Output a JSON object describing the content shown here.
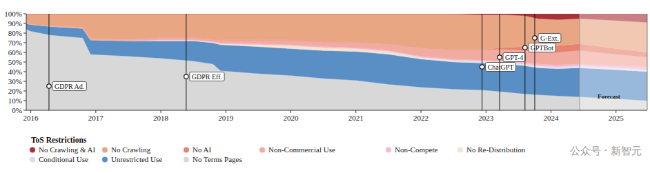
{
  "chart_data": {
    "type": "area",
    "stacked": true,
    "grid": false,
    "legend": "bottom-left",
    "legend_title": "ToS Restrictions",
    "x": [
      2015.93,
      2016.0,
      2016.3,
      2016.8,
      2016.92,
      2017.5,
      2018.0,
      2018.5,
      2018.8,
      2018.92,
      2019.5,
      2020.0,
      2020.5,
      2021.0,
      2021.5,
      2022.0,
      2022.5,
      2022.94,
      2023.3,
      2023.6,
      2023.8,
      2024.1,
      2024.44,
      2025.0,
      2025.48
    ],
    "xlim": [
      2015.93,
      2025.48
    ],
    "xticks": [
      2016,
      2017,
      2018,
      2019,
      2020,
      2021,
      2022,
      2023,
      2024,
      2025
    ],
    "ylim": [
      0,
      100
    ],
    "yticks": [
      {
        "value": 0,
        "label": "0%"
      },
      {
        "value": 10,
        "label": "10%"
      },
      {
        "value": 20,
        "label": "20%"
      },
      {
        "value": 30,
        "label": "30%"
      },
      {
        "value": 40,
        "label": "40%"
      },
      {
        "value": 50,
        "label": "50%"
      },
      {
        "value": 60,
        "label": "60%"
      },
      {
        "value": 70,
        "label": "70%"
      },
      {
        "value": 80,
        "label": "80%"
      },
      {
        "value": 90,
        "label": "90%"
      },
      {
        "value": 100,
        "label": "100%"
      }
    ],
    "series": [
      {
        "name": "No Crawling & AI",
        "color": "#a8323a",
        "values": [
          0,
          0,
          0,
          0,
          0,
          0,
          0,
          0,
          0,
          0,
          0,
          0,
          0,
          0,
          0,
          0,
          0,
          1,
          1,
          2,
          5,
          6,
          5,
          7,
          9
        ]
      },
      {
        "name": "No Crawling",
        "color": "#e8a683",
        "values": [
          9,
          10,
          12,
          13,
          25,
          26,
          24,
          24,
          26,
          27,
          27,
          27,
          29,
          29,
          31,
          35,
          37,
          36,
          34,
          32,
          28,
          27,
          26,
          29,
          31
        ]
      },
      {
        "name": "No AI",
        "color": "#e9826f",
        "values": [
          0,
          0,
          0,
          0,
          0,
          0,
          0,
          0,
          0,
          0,
          0,
          0,
          0,
          0,
          0,
          0,
          0,
          0,
          2,
          4,
          6,
          7,
          7,
          6,
          5
        ]
      },
      {
        "name": "Non-Commercial Use",
        "color": "#f2aba1",
        "values": [
          1,
          1,
          1,
          2,
          2,
          2,
          3,
          3,
          3,
          3,
          4,
          5,
          5,
          6,
          7,
          9,
          10,
          11,
          12,
          12,
          13,
          13,
          14,
          12,
          10
        ]
      },
      {
        "name": "Non-Compete",
        "color": "#f3b8dc",
        "values": [
          0,
          0,
          0,
          0,
          0,
          0,
          0,
          0,
          0,
          1,
          1,
          1,
          1,
          1,
          1,
          1,
          1,
          1,
          1,
          2,
          2,
          2,
          2,
          2,
          3
        ]
      },
      {
        "name": "No Re-Distribution",
        "color": "#f4e3cf",
        "values": [
          0,
          0,
          0,
          0,
          0,
          0,
          1,
          1,
          1,
          1,
          2,
          3,
          3,
          3,
          2,
          1,
          1,
          1,
          1,
          1,
          1,
          1,
          1,
          1,
          1
        ]
      },
      {
        "name": "Conditional Use",
        "color": "#d3e0ee",
        "values": [
          0,
          0,
          0,
          0,
          0,
          0,
          0,
          0,
          0,
          0,
          0,
          0,
          0,
          0,
          1,
          1,
          1,
          1,
          1,
          1,
          1,
          1,
          1,
          1,
          1
        ]
      },
      {
        "name": "Unrestricted Use",
        "color": "#5a8fc5",
        "values": [
          6,
          7,
          9,
          10,
          15,
          16,
          18,
          21,
          22,
          27,
          28,
          28,
          29,
          30,
          31,
          29,
          28,
          28,
          29,
          29,
          28,
          28,
          30,
          30,
          30
        ]
      },
      {
        "name": "No Terms Pages",
        "color": "#d8d8d8",
        "values": [
          84,
          82,
          78,
          75,
          58,
          56,
          54,
          51,
          48,
          41,
          38,
          36,
          33,
          31,
          27,
          24,
          22,
          21,
          19,
          17,
          16,
          15,
          14,
          12,
          10
        ]
      }
    ],
    "annotations": [
      {
        "label": "GDPR Ad.",
        "x": 2016.28,
        "y": 25
      },
      {
        "label": "GDPR Eff.",
        "x": 2018.39,
        "y": 35
      },
      {
        "label": "ChatGPT",
        "x": 2022.94,
        "y": 45
      },
      {
        "label": "GPT-4",
        "x": 2023.21,
        "y": 55
      },
      {
        "label": "GPTBot",
        "x": 2023.6,
        "y": 65
      },
      {
        "label": "G-Ext.",
        "x": 2023.75,
        "y": 75
      }
    ],
    "forecast": {
      "x": 2024.44,
      "label": "Forecast"
    },
    "watermark": "公众号 · 新智元"
  }
}
